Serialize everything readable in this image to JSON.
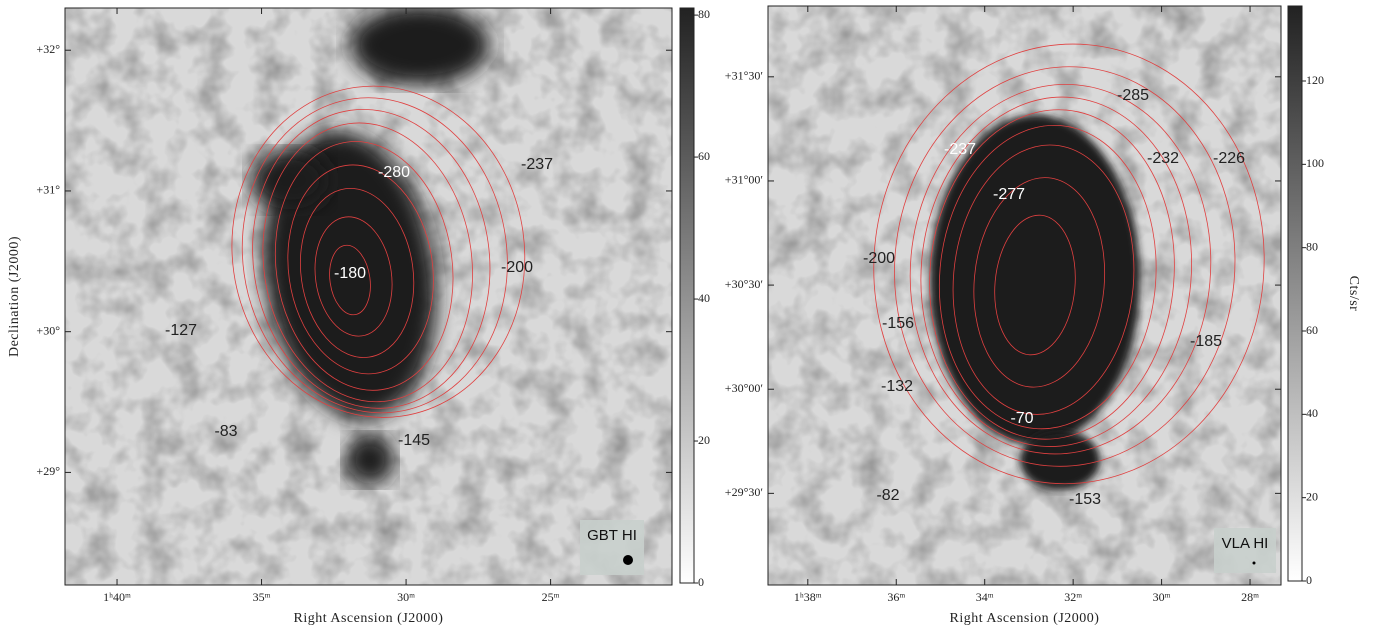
{
  "chart_data": [
    {
      "type": "image",
      "x_label": "Right Ascension (J2000)",
      "y_label": "Declination (J2000)",
      "xlim": [
        101.8,
        80.8
      ],
      "ylim": [
        28.2,
        32.3
      ],
      "xticks": [
        {
          "value": 100,
          "label": "1ʰ40ᵐ"
        },
        {
          "value": 95,
          "label": "35ᵐ"
        },
        {
          "value": 90,
          "label": "30ᵐ"
        },
        {
          "value": 85,
          "label": "25ᵐ"
        }
      ],
      "yticks": [
        {
          "value": 32,
          "label": "+32°"
        },
        {
          "value": 31,
          "label": "+31°"
        },
        {
          "value": 30,
          "label": "+30°"
        },
        {
          "value": 29,
          "label": "+29°"
        }
      ],
      "colorbar": {
        "lim": [
          0,
          81
        ],
        "ticks": [
          0,
          20,
          40,
          60,
          80
        ]
      },
      "annotations": [
        "-280",
        "-237",
        "-180",
        "-200",
        "-127",
        "-83",
        "-145"
      ],
      "beam_label": "GBT HI"
    },
    {
      "type": "image",
      "x_label": "Right Ascension (J2000)",
      "xlim": [
        98.9,
        87.3
      ],
      "ylim": [
        29.06,
        31.84
      ],
      "xticks": [
        {
          "value": 98,
          "label": "1ʰ38ᵐ"
        },
        {
          "value": 96,
          "label": "36ᵐ"
        },
        {
          "value": 94,
          "label": "34ᵐ"
        },
        {
          "value": 92,
          "label": "32ᵐ"
        },
        {
          "value": 90,
          "label": "30ᵐ"
        },
        {
          "value": 88,
          "label": "28ᵐ"
        }
      ],
      "yticks": [
        {
          "value": 31.5,
          "label": "+31°30′"
        },
        {
          "value": 31,
          "label": "+31°00′"
        },
        {
          "value": 30.5,
          "label": "+30°30′"
        },
        {
          "value": 30,
          "label": "+30°00′"
        },
        {
          "value": 29.5,
          "label": "+29°30′"
        }
      ],
      "colorbar": {
        "lim": [
          0,
          138
        ],
        "ticks": [
          0,
          20,
          40,
          60,
          80,
          100,
          120
        ],
        "label": "Cts/sr"
      },
      "annotations": [
        "-285",
        "-237",
        "-232",
        "-226",
        "-277",
        "-200",
        "-156",
        "-185",
        "-132",
        "-70",
        "-82",
        "-153"
      ],
      "beam_label": "VLA HI"
    }
  ]
}
